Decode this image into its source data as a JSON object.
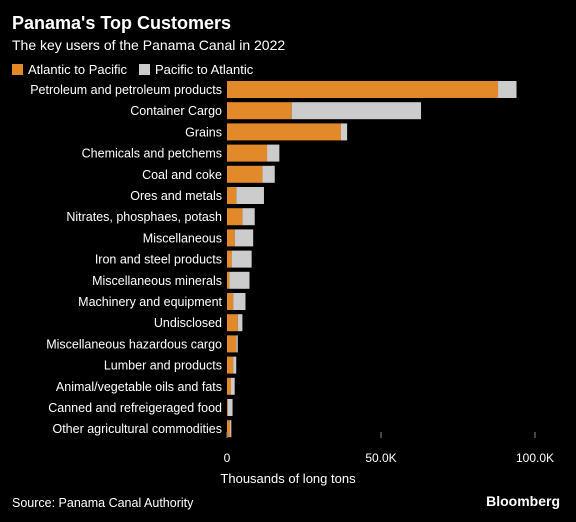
{
  "chart_data": {
    "type": "bar",
    "orientation": "horizontal",
    "stacked": true,
    "title": "Panama's Top Customers",
    "subtitle": "The key users of the Panama Canal in 2022",
    "xlabel": "Thousands of long tons",
    "xlim": [
      0,
      100000
    ],
    "x_ticks": [
      0,
      50000,
      100000
    ],
    "x_tick_labels": [
      "0",
      "50.0K",
      "100.0K"
    ],
    "legend_position": "top-left",
    "categories": [
      "Petroleum and petroleum products",
      "Container Cargo",
      "Grains",
      "Chemicals and petchems",
      "Coal and coke",
      "Ores and metals",
      "Nitrates, phosphaes, potash",
      "Miscellaneous",
      "Iron and steel products",
      "Miscellaneous minerals",
      "Machinery and equipment",
      "Undisclosed",
      "Miscellaneous hazardous cargo",
      "Lumber and products",
      "Animal/vegetable oils and fats",
      "Canned and refreigeraged food",
      "Other agricultural commodities"
    ],
    "series": [
      {
        "name": "Atlantic to Pacific",
        "color": "#e2892a",
        "values": [
          88000,
          21000,
          37000,
          13000,
          11500,
          3000,
          5000,
          2500,
          1500,
          800,
          2000,
          3500,
          3000,
          2000,
          1300,
          300,
          1000
        ]
      },
      {
        "name": "Pacific to Atlantic",
        "color": "#cccccc",
        "values": [
          6000,
          42000,
          2000,
          4000,
          4000,
          9000,
          4000,
          6000,
          6500,
          6500,
          4000,
          1500,
          500,
          1000,
          1200,
          1500,
          400
        ]
      }
    ]
  },
  "source": "Source: Panama Canal Authority",
  "brand": "Bloomberg"
}
